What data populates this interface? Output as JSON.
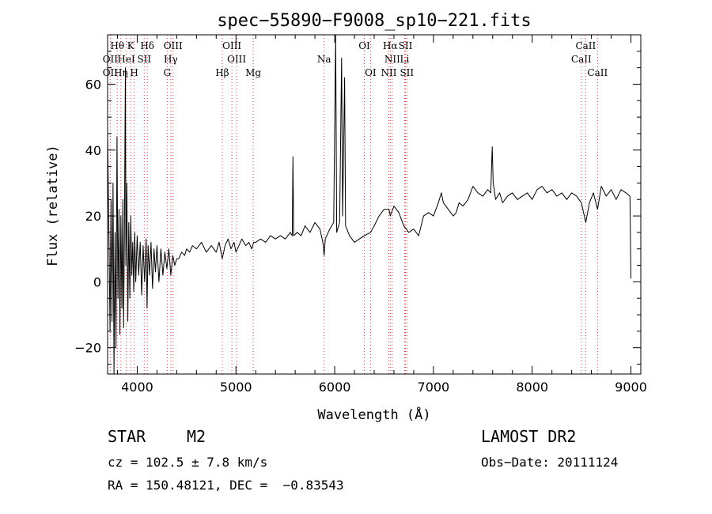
{
  "chart_data": {
    "type": "line",
    "title": "spec−55890−F9008_sp10−221.fits",
    "xlabel": "Wavelength (Å)",
    "ylabel": "Flux (relative)",
    "xlim": [
      3700,
      9100
    ],
    "ylim": [
      -28,
      75
    ],
    "xticks": [
      4000,
      5000,
      6000,
      7000,
      8000,
      9000
    ],
    "xtick_labels": [
      "4000",
      "5000",
      "6000",
      "7000",
      "8000",
      "9000"
    ],
    "yticks": [
      -20,
      0,
      20,
      40,
      60
    ],
    "ytick_labels": [
      "−20",
      "0",
      "20",
      "40",
      "60"
    ],
    "grid": false,
    "legend": "none",
    "colors": {
      "spectrum": "#000000",
      "line_markers": "#d63a3a"
    },
    "spectral_lines": [
      {
        "label": "Hθ",
        "x": 3798,
        "row": 0
      },
      {
        "label": "K",
        "x": 3934,
        "row": 0
      },
      {
        "label": "Hδ",
        "x": 4102,
        "row": 0
      },
      {
        "label": "OIII",
        "x": 4363,
        "row": 0
      },
      {
        "label": "OIII",
        "x": 4959,
        "row": 0
      },
      {
        "label": "OI",
        "x": 6300,
        "row": 0
      },
      {
        "label": "Hα",
        "x": 6563,
        "row": 0
      },
      {
        "label": "SII",
        "x": 6717,
        "row": 0
      },
      {
        "label": "CaII",
        "x": 8542,
        "row": 0
      },
      {
        "label": "OII",
        "x": 3727,
        "row": 1
      },
      {
        "label": "HeI",
        "x": 3889,
        "row": 1
      },
      {
        "label": "SII",
        "x": 4071,
        "row": 1
      },
      {
        "label": "Hγ",
        "x": 4340,
        "row": 1
      },
      {
        "label": "OIII",
        "x": 5007,
        "row": 1
      },
      {
        "label": "Na",
        "x": 5893,
        "row": 1
      },
      {
        "label": "NII",
        "x": 6583,
        "row": 1
      },
      {
        "label": "Li",
        "x": 6708,
        "row": 1
      },
      {
        "label": "CaII",
        "x": 8498,
        "row": 1
      },
      {
        "label": "OII",
        "x": 3727,
        "row": 2
      },
      {
        "label": "Hη",
        "x": 3835,
        "row": 2
      },
      {
        "label": "H",
        "x": 3969,
        "row": 2
      },
      {
        "label": "G",
        "x": 4304,
        "row": 2
      },
      {
        "label": "Hβ",
        "x": 4861,
        "row": 2
      },
      {
        "label": "Mg",
        "x": 5175,
        "row": 2
      },
      {
        "label": "OI",
        "x": 6363,
        "row": 2
      },
      {
        "label": "NII",
        "x": 6548,
        "row": 2
      },
      {
        "label": "SII",
        "x": 6731,
        "row": 2
      },
      {
        "label": "CaII",
        "x": 8662,
        "row": 2
      }
    ],
    "series": [
      {
        "points": [
          [
            3700,
            45
          ],
          [
            3715,
            10
          ],
          [
            3725,
            -15
          ],
          [
            3735,
            25
          ],
          [
            3745,
            -12
          ],
          [
            3755,
            30
          ],
          [
            3765,
            -28
          ],
          [
            3775,
            15
          ],
          [
            3785,
            -20
          ],
          [
            3795,
            44
          ],
          [
            3805,
            -5
          ],
          [
            3815,
            22
          ],
          [
            3825,
            -16
          ],
          [
            3835,
            20
          ],
          [
            3845,
            -8
          ],
          [
            3855,
            25
          ],
          [
            3862,
            -14
          ],
          [
            3870,
            12
          ],
          [
            3880,
            65
          ],
          [
            3885,
            5
          ],
          [
            3895,
            30
          ],
          [
            3905,
            -12
          ],
          [
            3915,
            18
          ],
          [
            3925,
            -5
          ],
          [
            3935,
            20
          ],
          [
            3945,
            2
          ],
          [
            3955,
            12
          ],
          [
            3965,
            -3
          ],
          [
            3975,
            15
          ],
          [
            3985,
            0
          ],
          [
            4000,
            14
          ],
          [
            4015,
            2
          ],
          [
            4030,
            12
          ],
          [
            4045,
            -4
          ],
          [
            4060,
            11
          ],
          [
            4075,
            0
          ],
          [
            4090,
            13
          ],
          [
            4100,
            -8
          ],
          [
            4110,
            11
          ],
          [
            4125,
            2
          ],
          [
            4140,
            12
          ],
          [
            4155,
            -2
          ],
          [
            4170,
            10
          ],
          [
            4185,
            3
          ],
          [
            4200,
            11
          ],
          [
            4220,
            0
          ],
          [
            4240,
            10
          ],
          [
            4260,
            2
          ],
          [
            4280,
            9
          ],
          [
            4300,
            4
          ],
          [
            4320,
            10
          ],
          [
            4340,
            2
          ],
          [
            4360,
            8
          ],
          [
            4380,
            5
          ],
          [
            4400,
            7
          ],
          [
            4420,
            7
          ],
          [
            4450,
            9
          ],
          [
            4480,
            8
          ],
          [
            4500,
            10
          ],
          [
            4530,
            9
          ],
          [
            4560,
            11
          ],
          [
            4600,
            10
          ],
          [
            4650,
            12
          ],
          [
            4700,
            9
          ],
          [
            4750,
            11
          ],
          [
            4800,
            9
          ],
          [
            4830,
            12
          ],
          [
            4861,
            7
          ],
          [
            4890,
            11
          ],
          [
            4920,
            13
          ],
          [
            4950,
            10
          ],
          [
            4980,
            12
          ],
          [
            5000,
            9
          ],
          [
            5030,
            11
          ],
          [
            5060,
            13
          ],
          [
            5100,
            11
          ],
          [
            5130,
            12
          ],
          [
            5160,
            10
          ],
          [
            5180,
            12
          ],
          [
            5200,
            12
          ],
          [
            5250,
            13
          ],
          [
            5300,
            12
          ],
          [
            5350,
            14
          ],
          [
            5400,
            13
          ],
          [
            5450,
            14
          ],
          [
            5500,
            13
          ],
          [
            5550,
            15
          ],
          [
            5570,
            14
          ],
          [
            5577,
            38
          ],
          [
            5584,
            14
          ],
          [
            5620,
            15
          ],
          [
            5660,
            14
          ],
          [
            5700,
            17
          ],
          [
            5750,
            15
          ],
          [
            5800,
            18
          ],
          [
            5850,
            16
          ],
          [
            5880,
            12
          ],
          [
            5893,
            8
          ],
          [
            5905,
            13
          ],
          [
            5950,
            16
          ],
          [
            5990,
            18
          ],
          [
            6010,
            75
          ],
          [
            6020,
            15
          ],
          [
            6050,
            18
          ],
          [
            6070,
            68
          ],
          [
            6080,
            20
          ],
          [
            6100,
            62
          ],
          [
            6110,
            17
          ],
          [
            6150,
            14
          ],
          [
            6200,
            12
          ],
          [
            6250,
            13
          ],
          [
            6300,
            14
          ],
          [
            6363,
            15
          ],
          [
            6400,
            17
          ],
          [
            6450,
            20
          ],
          [
            6500,
            22
          ],
          [
            6550,
            22
          ],
          [
            6563,
            20
          ],
          [
            6600,
            23
          ],
          [
            6650,
            21
          ],
          [
            6700,
            17
          ],
          [
            6750,
            15
          ],
          [
            6800,
            16
          ],
          [
            6850,
            14
          ],
          [
            6900,
            20
          ],
          [
            6950,
            21
          ],
          [
            7000,
            20
          ],
          [
            7050,
            24
          ],
          [
            7080,
            27
          ],
          [
            7100,
            24
          ],
          [
            7150,
            22
          ],
          [
            7200,
            20
          ],
          [
            7230,
            21
          ],
          [
            7260,
            24
          ],
          [
            7300,
            23
          ],
          [
            7350,
            25
          ],
          [
            7400,
            29
          ],
          [
            7450,
            27
          ],
          [
            7500,
            26
          ],
          [
            7550,
            28
          ],
          [
            7580,
            27
          ],
          [
            7595,
            41
          ],
          [
            7605,
            30
          ],
          [
            7630,
            25
          ],
          [
            7670,
            27
          ],
          [
            7700,
            24
          ],
          [
            7750,
            26
          ],
          [
            7800,
            27
          ],
          [
            7850,
            25
          ],
          [
            7900,
            26
          ],
          [
            7950,
            27
          ],
          [
            8000,
            25
          ],
          [
            8050,
            28
          ],
          [
            8100,
            29
          ],
          [
            8150,
            27
          ],
          [
            8200,
            28
          ],
          [
            8250,
            26
          ],
          [
            8300,
            27
          ],
          [
            8350,
            25
          ],
          [
            8400,
            27
          ],
          [
            8450,
            26
          ],
          [
            8498,
            24
          ],
          [
            8542,
            18
          ],
          [
            8580,
            24
          ],
          [
            8620,
            27
          ],
          [
            8662,
            22
          ],
          [
            8700,
            29
          ],
          [
            8750,
            26
          ],
          [
            8800,
            28
          ],
          [
            8850,
            25
          ],
          [
            8900,
            28
          ],
          [
            8950,
            27
          ],
          [
            8990,
            26
          ],
          [
            9000,
            1
          ]
        ]
      }
    ]
  },
  "info": {
    "object_class": "STAR",
    "subclass": "M2",
    "release": "LAMOST DR2",
    "redshift": "cz = 102.5 ± 7.8 km/s",
    "obs_date": "Obs−Date: 20111124",
    "coords": "RA = 150.48121, DEC =  −0.83543"
  }
}
